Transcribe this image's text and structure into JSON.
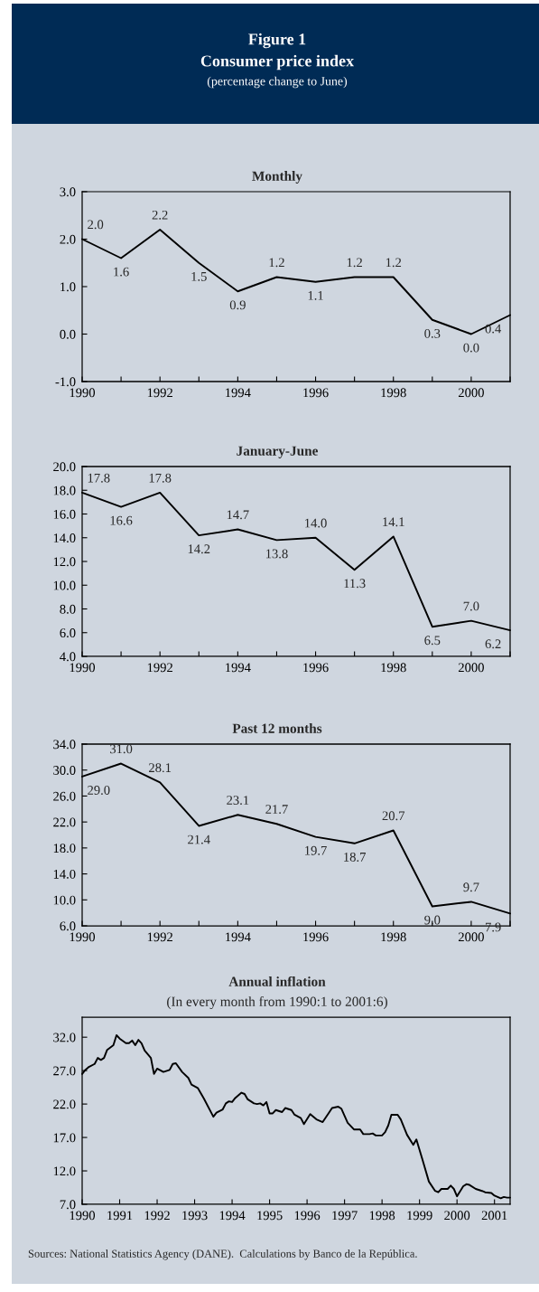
{
  "chart_data": [
    {
      "type": "other",
      "title": "Figure 1",
      "subtitle": "Consumer price index",
      "annotations": [
        "(percentage change to June)"
      ]
    },
    {
      "type": "line",
      "title": "Monthly",
      "x": [
        1990,
        1991,
        1992,
        1993,
        1994,
        1995,
        1996,
        1997,
        1998,
        1999,
        2000,
        2001
      ],
      "values": [
        2.0,
        1.6,
        2.2,
        1.5,
        0.9,
        1.2,
        1.1,
        1.2,
        1.2,
        0.3,
        0.0,
        0.4
      ],
      "value_labels": [
        "2.0",
        "1.6",
        "2.2",
        "1.5",
        "0.9",
        "1.2",
        "1.1",
        "1.2",
        "1.2",
        "0.3",
        "0.0",
        "0.4"
      ],
      "color": "#000000",
      "xlim": [
        1990,
        2001
      ],
      "xticks": [
        1990,
        {
          "value": 1991,
          "label": null
        },
        1992,
        {
          "value": 1993,
          "label": null
        },
        1994,
        {
          "value": 1995,
          "label": null
        },
        1996,
        {
          "value": 1997,
          "label": null
        },
        1998,
        {
          "value": 1999,
          "label": null
        },
        2000,
        {
          "value": 2001,
          "label": null
        }
      ],
      "ylim": [
        -1,
        3
      ],
      "yticks": [
        {
          "value": -1,
          "label": "-1.0"
        },
        {
          "value": 0,
          "label": "0.0"
        },
        {
          "value": 1,
          "label": "1.0"
        },
        {
          "value": 2,
          "label": "2.0"
        },
        {
          "value": 3,
          "label": "3.0"
        }
      ]
    },
    {
      "type": "line",
      "title": "January-June",
      "x": [
        1990,
        1991,
        1992,
        1993,
        1994,
        1995,
        1996,
        1997,
        1998,
        1999,
        2000,
        2001
      ],
      "values": [
        17.8,
        16.6,
        17.8,
        14.2,
        14.7,
        13.8,
        14.0,
        11.3,
        14.1,
        6.5,
        7.0,
        6.2
      ],
      "value_labels": [
        "17.8",
        "16.6",
        "17.8",
        "14.2",
        "14.7",
        "13.8",
        "14.0",
        "11.3",
        "14.1",
        "6.5",
        "7.0",
        "6.2"
      ],
      "color": "#000000",
      "xlim": [
        1990,
        2001
      ],
      "xticks": [
        1990,
        {
          "value": 1991,
          "label": null
        },
        1992,
        {
          "value": 1993,
          "label": null
        },
        1994,
        {
          "value": 1995,
          "label": null
        },
        1996,
        {
          "value": 1997,
          "label": null
        },
        1998,
        {
          "value": 1999,
          "label": null
        },
        2000,
        {
          "value": 2001,
          "label": null
        }
      ],
      "ylim": [
        4,
        20
      ],
      "yticks": [
        {
          "value": 4,
          "label": "4.0"
        },
        {
          "value": 6,
          "label": "6.0"
        },
        {
          "value": 8,
          "label": "8.0"
        },
        {
          "value": 10,
          "label": "10.0"
        },
        {
          "value": 12,
          "label": "12.0"
        },
        {
          "value": 14,
          "label": "14.0"
        },
        {
          "value": 16,
          "label": "16.0"
        },
        {
          "value": 18,
          "label": "18.0"
        },
        {
          "value": 20,
          "label": "20.0"
        }
      ]
    },
    {
      "type": "line",
      "title": "Past 12 months",
      "x": [
        1990,
        1991,
        1992,
        1993,
        1994,
        1995,
        1996,
        1997,
        1998,
        1999,
        2000,
        2001
      ],
      "values": [
        29.0,
        31.0,
        28.1,
        21.4,
        23.1,
        21.7,
        19.7,
        18.7,
        20.7,
        9.0,
        9.7,
        7.9
      ],
      "value_labels": [
        "29.0",
        "31.0",
        "28.1",
        "21.4",
        "23.1",
        "21.7",
        "19.7",
        "18.7",
        "20.7",
        "9.0",
        "9.7",
        "7.9"
      ],
      "color": "#000000",
      "xlim": [
        1990,
        2001
      ],
      "xticks": [
        1990,
        {
          "value": 1991,
          "label": null
        },
        1992,
        {
          "value": 1993,
          "label": null
        },
        1994,
        {
          "value": 1995,
          "label": null
        },
        1996,
        {
          "value": 1997,
          "label": null
        },
        1998,
        {
          "value": 1999,
          "label": null
        },
        2000,
        {
          "value": 2001,
          "label": null
        }
      ],
      "ylim": [
        6,
        34
      ],
      "yticks": [
        {
          "value": 6,
          "label": "6.0"
        },
        {
          "value": 10,
          "label": "10.0"
        },
        {
          "value": 14,
          "label": "14.0"
        },
        {
          "value": 18,
          "label": "18.0"
        },
        {
          "value": 22,
          "label": "22.0"
        },
        {
          "value": 26,
          "label": "26.0"
        },
        {
          "value": 30,
          "label": "30.0"
        },
        {
          "value": 34,
          "label": "34.0"
        }
      ]
    },
    {
      "type": "line",
      "title": "Annual inflation",
      "subtitle": "(In every month from 1990:1 to 2001:6)",
      "color": "#000000",
      "x": [
        "1990-01",
        "1990-02",
        "1990-03",
        "1990-05",
        "1990-06",
        "1990-07",
        "1990-08",
        "1990-09",
        "1990-11",
        "1990-12",
        "1991-01",
        "1991-03",
        "1991-04",
        "1991-05",
        "1991-06",
        "1991-07",
        "1991-08",
        "1991-09",
        "1991-11",
        "1991-12",
        "1992-01",
        "1992-03",
        "1992-05",
        "1992-06",
        "1992-07",
        "1992-09",
        "1992-11",
        "1992-12",
        "1993-02",
        "1993-04",
        "1993-07",
        "1993-08",
        "1993-10",
        "1993-11",
        "1993-12",
        "1994-01",
        "1994-02",
        "1994-04",
        "1994-05",
        "1994-06",
        "1994-08",
        "1994-09",
        "1994-10",
        "1994-11",
        "1994-12",
        "1995-01",
        "1995-02",
        "1995-03",
        "1995-05",
        "1995-06",
        "1995-08",
        "1995-09",
        "1995-11",
        "1995-12",
        "1996-02",
        "1996-04",
        "1996-06",
        "1996-08",
        "1996-09",
        "1996-11",
        "1996-12",
        "1997-02",
        "1997-04",
        "1997-06",
        "1997-07",
        "1997-09",
        "1997-10",
        "1997-11",
        "1998-01",
        "1998-02",
        "1998-03",
        "1998-04",
        "1998-06",
        "1998-07",
        "1998-09",
        "1998-11",
        "1998-12",
        "1999-02",
        "1999-04",
        "1999-06",
        "1999-07",
        "1999-08",
        "1999-10",
        "1999-11",
        "1999-12",
        "2000-01",
        "2000-03",
        "2000-04",
        "2000-05",
        "2000-07",
        "2000-09",
        "2000-10",
        "2000-12",
        "2001-01",
        "2001-03",
        "2001-04",
        "2001-05",
        "2001-06"
      ],
      "values": [
        26.5,
        27.1,
        27.5,
        28.0,
        28.9,
        28.6,
        28.9,
        30.1,
        30.8,
        32.3,
        31.8,
        31.1,
        31.1,
        31.5,
        30.8,
        31.6,
        31.1,
        30.0,
        28.9,
        26.5,
        27.3,
        26.8,
        27.1,
        28.0,
        28.1,
        26.8,
        25.9,
        24.9,
        24.4,
        22.8,
        20.1,
        20.7,
        21.2,
        22.1,
        22.4,
        22.3,
        22.9,
        23.7,
        23.5,
        22.7,
        22.1,
        22.0,
        22.1,
        21.8,
        22.3,
        20.6,
        20.6,
        21.1,
        20.8,
        21.4,
        21.1,
        20.4,
        19.9,
        19.0,
        20.5,
        19.7,
        19.3,
        20.7,
        21.4,
        21.6,
        21.3,
        19.2,
        18.2,
        18.2,
        17.5,
        17.5,
        17.6,
        17.3,
        17.3,
        17.8,
        18.8,
        20.4,
        20.4,
        19.7,
        17.4,
        15.9,
        16.7,
        13.6,
        10.4,
        9.0,
        8.8,
        9.3,
        9.3,
        9.8,
        9.3,
        8.2,
        9.7,
        10.0,
        9.9,
        9.3,
        9.0,
        8.8,
        8.7,
        8.3,
        7.9,
        8.1,
        8.0,
        8.0
      ],
      "xlim": [
        "1990-01",
        "2001-06"
      ],
      "xticks": [
        {
          "value": "1990-01",
          "label": "1990"
        },
        {
          "value": "1991-01",
          "label": "1991"
        },
        {
          "value": "1992-01",
          "label": "1992"
        },
        {
          "value": "1993-01",
          "label": "1993"
        },
        {
          "value": "1994-01",
          "label": "1994"
        },
        {
          "value": "1995-01",
          "label": "1995"
        },
        {
          "value": "1996-01",
          "label": "1996"
        },
        {
          "value": "1997-01",
          "label": "1997"
        },
        {
          "value": "1998-01",
          "label": "1998"
        },
        {
          "value": "1999-01",
          "label": "1999"
        },
        {
          "value": "2000-01",
          "label": "2000"
        },
        {
          "value": "2001-01",
          "label": "2001"
        }
      ],
      "ylim": [
        7,
        35
      ],
      "yticks": [
        {
          "value": 7,
          "label": "7.0"
        },
        {
          "value": 12,
          "label": "12.0"
        },
        {
          "value": 17,
          "label": "17.0"
        },
        {
          "value": 22,
          "label": "22.0"
        },
        {
          "value": 27,
          "label": "27.0"
        },
        {
          "value": 32,
          "label": "32.0"
        }
      ],
      "annotations": [
        "Sources: National Statistics Agency (DANE).  Calculations by Banco de la República."
      ]
    }
  ]
}
